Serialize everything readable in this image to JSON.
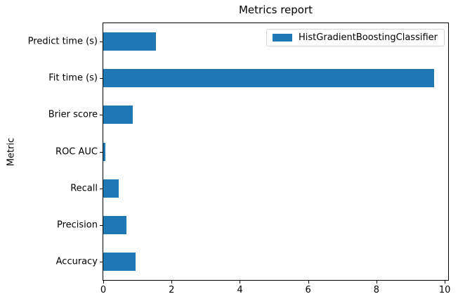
{
  "chart_data": {
    "type": "bar",
    "orientation": "horizontal",
    "title": "Metrics report",
    "xlabel": "",
    "ylabel": "Metric",
    "categories": [
      "Predict time (s)",
      "Fit time (s)",
      "Brier score",
      "ROC AUC",
      "Recall",
      "Precision",
      "Accuracy"
    ],
    "categories_order": "top-to-bottom",
    "series": [
      {
        "name": "HistGradientBoostingClassifier",
        "color": "#1f77b4",
        "values": [
          1.54,
          9.68,
          0.87,
          0.06,
          0.45,
          0.68,
          0.95
        ]
      }
    ],
    "xlim": [
      0,
      10.1
    ],
    "xticks": [
      0,
      2,
      4,
      6,
      8,
      10
    ],
    "grid": false,
    "legend_position": "upper right"
  }
}
